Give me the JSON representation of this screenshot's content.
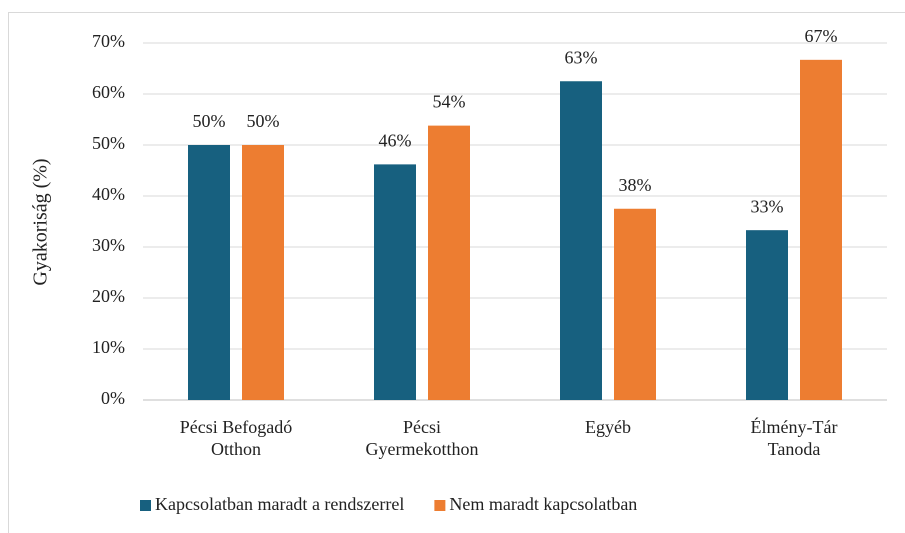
{
  "chart_data": {
    "type": "bar",
    "y_label": "Gyakoriság (%)",
    "categories": [
      "Pécsi Befogadó\nOtthon",
      "Pécsi\nGyermekotthon",
      "Egyéb",
      "Élmény-Tár\nTanoda"
    ],
    "series": [
      {
        "name": "Kapcsolatban maradt a rendszerrel",
        "color": "#17607f",
        "values": [
          50,
          46.2,
          62.5,
          33.3
        ],
        "value_labels": [
          "50%",
          "46%",
          "63%",
          "33%"
        ]
      },
      {
        "name": "Nem maradt kapcsolatban",
        "color": "#ed7d31",
        "values": [
          50,
          53.8,
          37.5,
          66.7
        ],
        "value_labels": [
          "50%",
          "54%",
          "38%",
          "67%"
        ]
      }
    ],
    "ylim": [
      0,
      70
    ],
    "yticks": [
      {
        "value": 0,
        "label": "0%"
      },
      {
        "value": 10,
        "label": "10%"
      },
      {
        "value": 20,
        "label": "20%"
      },
      {
        "value": 30,
        "label": "30%"
      },
      {
        "value": 40,
        "label": "40%"
      },
      {
        "value": 50,
        "label": "50%"
      },
      {
        "value": 60,
        "label": "60%"
      },
      {
        "value": 70,
        "label": "70%"
      }
    ],
    "grid": true,
    "legend": "bottom"
  }
}
